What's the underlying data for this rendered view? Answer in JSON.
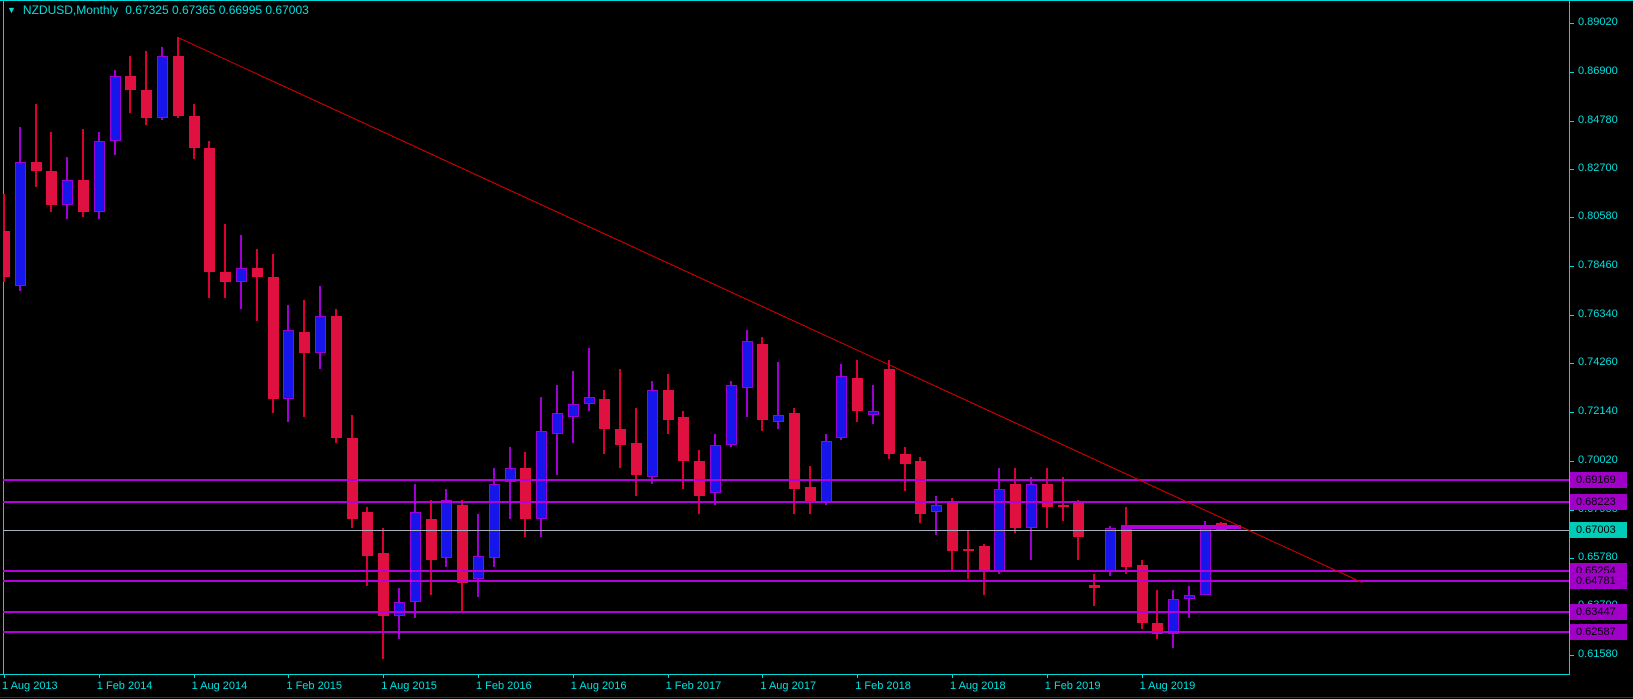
{
  "window": {
    "dropdown_icon": "▼",
    "symbol_label": "NZDUSD,Monthly",
    "quote_ohlc": "0.67325 0.67365 0.66995 0.67003"
  },
  "colors": {
    "background": "#000000",
    "frame": "#00D9D9",
    "axis_text": "#00E0E0",
    "bull_body": "#1616EA",
    "bull_outline": "#A000D5",
    "bull_wick": "#A000D5",
    "bear_body": "#E01040",
    "bear_outline": "#E01040",
    "bear_wick": "#DC0030",
    "hline": "#B400DC",
    "hline_label_bg": "#A000C8",
    "current_price_line": "#A8B0C0",
    "current_price_label_bg": "#00CDB8",
    "trendline": "#DE0000",
    "label_text": "#000000"
  },
  "axes": {
    "price_ticks": [
      {
        "label": "0.89020",
        "price": 0.8902
      },
      {
        "label": "0.86900",
        "price": 0.869
      },
      {
        "label": "0.84780",
        "price": 0.8478
      },
      {
        "label": "0.82700",
        "price": 0.827
      },
      {
        "label": "0.80580",
        "price": 0.8058
      },
      {
        "label": "0.78460",
        "price": 0.7846
      },
      {
        "label": "0.76340",
        "price": 0.7634
      },
      {
        "label": "0.74260",
        "price": 0.7426
      },
      {
        "label": "0.72140",
        "price": 0.7214
      },
      {
        "label": "0.70020",
        "price": 0.7002
      },
      {
        "label": "0.67900",
        "price": 0.679
      },
      {
        "label": "0.65780",
        "price": 0.6578
      },
      {
        "label": "0.63700",
        "price": 0.637
      },
      {
        "label": "0.61580",
        "price": 0.6158
      }
    ],
    "time_ticks": [
      {
        "label": "1 Aug 2013",
        "bar": 0
      },
      {
        "label": "1 Feb 2014",
        "bar": 6
      },
      {
        "label": "1 Aug 2014",
        "bar": 12
      },
      {
        "label": "1 Feb 2015",
        "bar": 18
      },
      {
        "label": "1 Aug 2015",
        "bar": 24
      },
      {
        "label": "1 Feb 2016",
        "bar": 30
      },
      {
        "label": "1 Aug 2016",
        "bar": 36
      },
      {
        "label": "1 Feb 2017",
        "bar": 42
      },
      {
        "label": "1 Aug 2017",
        "bar": 48
      },
      {
        "label": "1 Feb 2018",
        "bar": 54
      },
      {
        "label": "1 Aug 2018",
        "bar": 60
      },
      {
        "label": "1 Feb 2019",
        "bar": 66
      },
      {
        "label": "1 Aug 2019",
        "bar": 72
      }
    ]
  },
  "chart_data": {
    "type": "candlestick",
    "symbol": "NZDUSD",
    "timeframe": "Monthly",
    "title": "NZDUSD,Monthly",
    "current_bar_ohlc": {
      "open": 0.67325,
      "high": 0.67365,
      "low": 0.66995,
      "close": 0.67003
    },
    "ylim": [
      0.6077,
      0.8941
    ],
    "grid": false,
    "legend": false,
    "candles": [
      {
        "t": "Aug 2013",
        "o": 0.8,
        "h": 0.816,
        "l": 0.778,
        "c": 0.78
      },
      {
        "t": "Sep 2013",
        "o": 0.776,
        "h": 0.845,
        "l": 0.774,
        "c": 0.83
      },
      {
        "t": "Oct 2013",
        "o": 0.83,
        "h": 0.855,
        "l": 0.819,
        "c": 0.826
      },
      {
        "t": "Nov 2013",
        "o": 0.826,
        "h": 0.843,
        "l": 0.808,
        "c": 0.811
      },
      {
        "t": "Dec 2013",
        "o": 0.811,
        "h": 0.832,
        "l": 0.805,
        "c": 0.822
      },
      {
        "t": "Jan 2014",
        "o": 0.822,
        "h": 0.844,
        "l": 0.806,
        "c": 0.808
      },
      {
        "t": "Feb 2014",
        "o": 0.808,
        "h": 0.843,
        "l": 0.805,
        "c": 0.839
      },
      {
        "t": "Mar 2014",
        "o": 0.839,
        "h": 0.87,
        "l": 0.833,
        "c": 0.867
      },
      {
        "t": "Apr 2014",
        "o": 0.867,
        "h": 0.876,
        "l": 0.851,
        "c": 0.861
      },
      {
        "t": "May 2014",
        "o": 0.861,
        "h": 0.878,
        "l": 0.846,
        "c": 0.849
      },
      {
        "t": "Jun 2014",
        "o": 0.849,
        "h": 0.88,
        "l": 0.848,
        "c": 0.876
      },
      {
        "t": "Jul 2014",
        "o": 0.876,
        "h": 0.8843,
        "l": 0.849,
        "c": 0.85
      },
      {
        "t": "Aug 2014",
        "o": 0.85,
        "h": 0.855,
        "l": 0.831,
        "c": 0.836
      },
      {
        "t": "Sep 2014",
        "o": 0.836,
        "h": 0.839,
        "l": 0.771,
        "c": 0.782
      },
      {
        "t": "Oct 2014",
        "o": 0.782,
        "h": 0.803,
        "l": 0.771,
        "c": 0.778
      },
      {
        "t": "Nov 2014",
        "o": 0.778,
        "h": 0.798,
        "l": 0.766,
        "c": 0.784
      },
      {
        "t": "Dec 2014",
        "o": 0.784,
        "h": 0.792,
        "l": 0.761,
        "c": 0.78
      },
      {
        "t": "Jan 2015",
        "o": 0.78,
        "h": 0.79,
        "l": 0.721,
        "c": 0.727
      },
      {
        "t": "Feb 2015",
        "o": 0.727,
        "h": 0.768,
        "l": 0.717,
        "c": 0.757
      },
      {
        "t": "Mar 2015",
        "o": 0.756,
        "h": 0.77,
        "l": 0.719,
        "c": 0.747
      },
      {
        "t": "Apr 2015",
        "o": 0.747,
        "h": 0.776,
        "l": 0.74,
        "c": 0.763
      },
      {
        "t": "May 2015",
        "o": 0.763,
        "h": 0.766,
        "l": 0.708,
        "c": 0.71
      },
      {
        "t": "Jun 2015",
        "o": 0.71,
        "h": 0.72,
        "l": 0.671,
        "c": 0.675
      },
      {
        "t": "Jul 2015",
        "o": 0.678,
        "h": 0.68,
        "l": 0.646,
        "c": 0.659
      },
      {
        "t": "Aug 2015",
        "o": 0.66,
        "h": 0.671,
        "l": 0.614,
        "c": 0.633
      },
      {
        "t": "Sep 2015",
        "o": 0.633,
        "h": 0.645,
        "l": 0.623,
        "c": 0.639
      },
      {
        "t": "Oct 2015",
        "o": 0.639,
        "h": 0.69,
        "l": 0.632,
        "c": 0.678
      },
      {
        "t": "Nov 2015",
        "o": 0.675,
        "h": 0.683,
        "l": 0.642,
        "c": 0.657
      },
      {
        "t": "Dec 2015",
        "o": 0.658,
        "h": 0.688,
        "l": 0.654,
        "c": 0.683
      },
      {
        "t": "Jan 2016",
        "o": 0.681,
        "h": 0.683,
        "l": 0.635,
        "c": 0.647
      },
      {
        "t": "Feb 2016",
        "o": 0.649,
        "h": 0.677,
        "l": 0.641,
        "c": 0.659
      },
      {
        "t": "Mar 2016",
        "o": 0.658,
        "h": 0.697,
        "l": 0.654,
        "c": 0.69
      },
      {
        "t": "Apr 2016",
        "o": 0.691,
        "h": 0.706,
        "l": 0.675,
        "c": 0.697
      },
      {
        "t": "May 2016",
        "o": 0.697,
        "h": 0.704,
        "l": 0.667,
        "c": 0.675
      },
      {
        "t": "Jun 2016",
        "o": 0.675,
        "h": 0.728,
        "l": 0.667,
        "c": 0.713
      },
      {
        "t": "Jul 2016",
        "o": 0.712,
        "h": 0.733,
        "l": 0.694,
        "c": 0.721
      },
      {
        "t": "Aug 2016",
        "o": 0.719,
        "h": 0.739,
        "l": 0.708,
        "c": 0.725
      },
      {
        "t": "Sep 2016",
        "o": 0.725,
        "h": 0.749,
        "l": 0.722,
        "c": 0.728
      },
      {
        "t": "Oct 2016",
        "o": 0.727,
        "h": 0.731,
        "l": 0.703,
        "c": 0.714
      },
      {
        "t": "Nov 2016",
        "o": 0.714,
        "h": 0.74,
        "l": 0.697,
        "c": 0.707
      },
      {
        "t": "Dec 2016",
        "o": 0.708,
        "h": 0.723,
        "l": 0.685,
        "c": 0.694
      },
      {
        "t": "Jan 2017",
        "o": 0.693,
        "h": 0.735,
        "l": 0.69,
        "c": 0.731
      },
      {
        "t": "Feb 2017",
        "o": 0.731,
        "h": 0.738,
        "l": 0.712,
        "c": 0.718
      },
      {
        "t": "Mar 2017",
        "o": 0.719,
        "h": 0.722,
        "l": 0.688,
        "c": 0.7
      },
      {
        "t": "Apr 2017",
        "o": 0.7,
        "h": 0.705,
        "l": 0.677,
        "c": 0.685
      },
      {
        "t": "May 2017",
        "o": 0.686,
        "h": 0.712,
        "l": 0.681,
        "c": 0.707
      },
      {
        "t": "Jun 2017",
        "o": 0.707,
        "h": 0.735,
        "l": 0.706,
        "c": 0.733
      },
      {
        "t": "Jul 2017",
        "o": 0.732,
        "h": 0.757,
        "l": 0.719,
        "c": 0.752
      },
      {
        "t": "Aug 2017",
        "o": 0.751,
        "h": 0.754,
        "l": 0.713,
        "c": 0.718
      },
      {
        "t": "Sep 2017",
        "o": 0.717,
        "h": 0.743,
        "l": 0.714,
        "c": 0.72
      },
      {
        "t": "Oct 2017",
        "o": 0.721,
        "h": 0.723,
        "l": 0.677,
        "c": 0.688
      },
      {
        "t": "Nov 2017",
        "o": 0.689,
        "h": 0.698,
        "l": 0.677,
        "c": 0.682
      },
      {
        "t": "Dec 2017",
        "o": 0.682,
        "h": 0.712,
        "l": 0.681,
        "c": 0.709
      },
      {
        "t": "Jan 2018",
        "o": 0.71,
        "h": 0.742,
        "l": 0.709,
        "c": 0.737
      },
      {
        "t": "Feb 2018",
        "o": 0.736,
        "h": 0.744,
        "l": 0.717,
        "c": 0.722
      },
      {
        "t": "Mar 2018",
        "o": 0.72,
        "h": 0.733,
        "l": 0.716,
        "c": 0.722
      },
      {
        "t": "Apr 2018",
        "o": 0.74,
        "h": 0.744,
        "l": 0.701,
        "c": 0.703
      },
      {
        "t": "May 2018",
        "o": 0.703,
        "h": 0.706,
        "l": 0.687,
        "c": 0.699
      },
      {
        "t": "Jun 2018",
        "o": 0.7,
        "h": 0.702,
        "l": 0.673,
        "c": 0.677
      },
      {
        "t": "Jul 2018",
        "o": 0.678,
        "h": 0.685,
        "l": 0.668,
        "c": 0.681
      },
      {
        "t": "Aug 2018",
        "o": 0.682,
        "h": 0.684,
        "l": 0.653,
        "c": 0.661
      },
      {
        "t": "Sep 2018",
        "o": 0.662,
        "h": 0.67,
        "l": 0.649,
        "c": 0.661
      },
      {
        "t": "Oct 2018",
        "o": 0.663,
        "h": 0.664,
        "l": 0.642,
        "c": 0.652
      },
      {
        "t": "Nov 2018",
        "o": 0.652,
        "h": 0.697,
        "l": 0.651,
        "c": 0.688
      },
      {
        "t": "Dec 2018",
        "o": 0.69,
        "h": 0.697,
        "l": 0.669,
        "c": 0.671
      },
      {
        "t": "Jan 2019",
        "o": 0.671,
        "h": 0.693,
        "l": 0.657,
        "c": 0.69
      },
      {
        "t": "Feb 2019",
        "o": 0.69,
        "h": 0.697,
        "l": 0.671,
        "c": 0.68
      },
      {
        "t": "Mar 2019",
        "o": 0.681,
        "h": 0.693,
        "l": 0.674,
        "c": 0.68
      },
      {
        "t": "Apr 2019",
        "o": 0.682,
        "h": 0.683,
        "l": 0.657,
        "c": 0.667
      },
      {
        "t": "May 2019",
        "o": 0.6465,
        "h": 0.651,
        "l": 0.637,
        "c": 0.645
      },
      {
        "t": "Jun 2019",
        "o": 0.652,
        "h": 0.672,
        "l": 0.65,
        "c": 0.671
      },
      {
        "t": "Jul 2019",
        "o": 0.671,
        "h": 0.68,
        "l": 0.651,
        "c": 0.654
      },
      {
        "t": "Aug 2019",
        "o": 0.655,
        "h": 0.657,
        "l": 0.627,
        "c": 0.63
      },
      {
        "t": "Sep 2019",
        "o": 0.63,
        "h": 0.644,
        "l": 0.623,
        "c": 0.625
      },
      {
        "t": "Oct 2019",
        "o": 0.625,
        "h": 0.644,
        "l": 0.619,
        "c": 0.64
      },
      {
        "t": "Nov 2019",
        "o": 0.64,
        "h": 0.646,
        "l": 0.632,
        "c": 0.642
      },
      {
        "t": "Dec 2019",
        "o": 0.642,
        "h": 0.674,
        "l": 0.642,
        "c": 0.672
      },
      {
        "t": "Jan 2020",
        "o": 0.67325,
        "h": 0.67365,
        "l": 0.66995,
        "c": 0.67003
      }
    ],
    "annotations": {
      "horizontal_lines": [
        {
          "price": 0.69169,
          "label": "0.69169"
        },
        {
          "price": 0.68223,
          "label": "0.68223"
        },
        {
          "price": 0.65254,
          "label": "0.65254"
        },
        {
          "price": 0.64781,
          "label": "0.64781"
        },
        {
          "price": 0.63447,
          "label": "0.63447"
        },
        {
          "price": 0.62587,
          "label": "0.62587"
        }
      ],
      "current_price_line": {
        "price": 0.67003,
        "label": "0.67003"
      },
      "horizontal_segment": {
        "price": 0.6713,
        "from_bar": 71,
        "to_bar": 78.3
      },
      "trendline": {
        "from_bar": 11,
        "from_price": 0.8843,
        "to_bar": 86,
        "to_price": 0.6476
      }
    }
  }
}
